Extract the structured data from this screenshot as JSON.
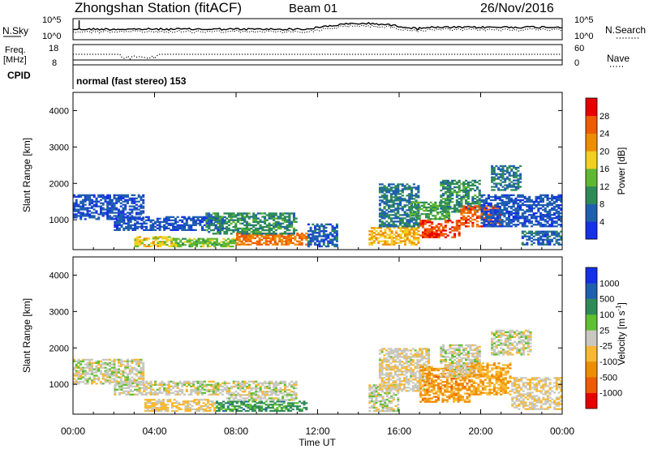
{
  "header": {
    "station": "Zhongshan Station (fitACF)",
    "beam": "Beam 01",
    "date": "26/Nov/2016"
  },
  "noise_panel": {
    "left_label": "N.Sky",
    "right_label": "N.Search",
    "left_ticks": [
      "10^5",
      "10^0"
    ],
    "right_ticks": [
      "10^5",
      "10^0"
    ]
  },
  "freq_panel": {
    "label_line1": "Freq.",
    "label_line2": "[MHz]",
    "left_ticks": [
      "18",
      "8"
    ],
    "right_ticks": [
      "60",
      "0"
    ],
    "right_label": "Nave"
  },
  "cpid": {
    "label": "CPID",
    "text": "normal (fast stereo) 153"
  },
  "power_panel": {
    "ylabel": "Slant Range [km]",
    "yticks": [
      "1000",
      "2000",
      "3000",
      "4000"
    ],
    "colorbar_title": "Power [dB]",
    "colorbar_ticks": [
      "4",
      "8",
      "12",
      "16",
      "20",
      "24",
      "28"
    ],
    "colors": [
      "#1430e8",
      "#1f5fb0",
      "#2e8b57",
      "#5fb830",
      "#f0d020",
      "#f08c00",
      "#f05a00",
      "#e80000"
    ]
  },
  "velocity_panel": {
    "ylabel": "Slant Range [km]",
    "yticks": [
      "1000",
      "2000",
      "3000",
      "4000"
    ],
    "colorbar_title": "Velocity [m s",
    "colorbar_title_sup": "-1",
    "colorbar_title_end": "]",
    "colorbar_ticks": [
      "-1000",
      "-500",
      "-100",
      "-25",
      "25",
      "100",
      "500",
      "1000"
    ],
    "colors": [
      "#e80000",
      "#f05a00",
      "#f08c00",
      "#f8b830",
      "#c8c8c0",
      "#5fc030",
      "#2e8b57",
      "#1f5fb0",
      "#1430e8"
    ]
  },
  "x_axis": {
    "ticks": [
      "00:00",
      "04:00",
      "08:00",
      "12:00",
      "16:00",
      "20:00",
      "00:00"
    ],
    "label": "Time UT"
  },
  "chart_data": {
    "type": "heatmap",
    "title": "Zhongshan Station (fitACF)   Beam 01   26/Nov/2016",
    "xlabel": "Time UT",
    "ylabel": "Slant Range [km]",
    "xlim_hours": [
      0,
      24
    ],
    "ylim_km": [
      180,
      4500
    ],
    "panels": [
      {
        "name": "Power",
        "units": "dB",
        "color_range": [
          0,
          32
        ],
        "regions": [
          {
            "t0": 0.0,
            "t1": 3.5,
            "r0": 1000,
            "r1": 1700,
            "v": 5
          },
          {
            "t0": 2.0,
            "t1": 7.5,
            "r0": 700,
            "r1": 1100,
            "v": 5
          },
          {
            "t0": 3.0,
            "t1": 5.0,
            "r0": 250,
            "r1": 550,
            "v": 18
          },
          {
            "t0": 5.0,
            "t1": 8.0,
            "r0": 250,
            "r1": 500,
            "v": 14
          },
          {
            "t0": 8.0,
            "t1": 11.5,
            "r0": 300,
            "r1": 650,
            "v": 24
          },
          {
            "t0": 6.5,
            "t1": 11.0,
            "r0": 600,
            "r1": 1200,
            "v": 10
          },
          {
            "t0": 11.5,
            "t1": 13.0,
            "r0": 250,
            "r1": 900,
            "v": 6
          },
          {
            "t0": 14.5,
            "t1": 17.0,
            "r0": 300,
            "r1": 800,
            "v": 20
          },
          {
            "t0": 15.0,
            "t1": 17.0,
            "r0": 800,
            "r1": 2000,
            "v": 8
          },
          {
            "t0": 16.5,
            "t1": 18.5,
            "r0": 1000,
            "r1": 1500,
            "v": 12
          },
          {
            "t0": 17.0,
            "t1": 19.0,
            "r0": 500,
            "r1": 1000,
            "v": 27
          },
          {
            "t0": 18.0,
            "t1": 20.0,
            "r0": 1200,
            "r1": 2100,
            "v": 10
          },
          {
            "t0": 19.0,
            "t1": 21.0,
            "r0": 800,
            "r1": 1400,
            "v": 26
          },
          {
            "t0": 20.0,
            "t1": 24.0,
            "r0": 800,
            "r1": 1700,
            "v": 5
          },
          {
            "t0": 20.5,
            "t1": 22.0,
            "r0": 1800,
            "r1": 2500,
            "v": 8
          },
          {
            "t0": 22.0,
            "t1": 24.0,
            "r0": 300,
            "r1": 700,
            "v": 6
          }
        ]
      },
      {
        "name": "Velocity",
        "units": "m s-1",
        "color_range": [
          -1000,
          1000
        ],
        "regions": [
          {
            "t0": 0.0,
            "t1": 3.5,
            "r0": 1000,
            "r1": 1700,
            "v": 0
          },
          {
            "t0": 2.0,
            "t1": 7.5,
            "r0": 700,
            "r1": 1100,
            "v": 0
          },
          {
            "t0": 3.5,
            "t1": 7.0,
            "r0": 250,
            "r1": 600,
            "v": -150
          },
          {
            "t0": 7.0,
            "t1": 11.5,
            "r0": 250,
            "r1": 550,
            "v": 400
          },
          {
            "t0": 7.5,
            "t1": 11.0,
            "r0": 550,
            "r1": 1100,
            "v": 0
          },
          {
            "t0": 14.5,
            "t1": 16.0,
            "r0": 250,
            "r1": 1000,
            "v": 0
          },
          {
            "t0": 15.0,
            "t1": 17.5,
            "r0": 800,
            "r1": 2000,
            "v": -60
          },
          {
            "t0": 17.0,
            "t1": 19.5,
            "r0": 500,
            "r1": 1500,
            "v": -400
          },
          {
            "t0": 18.0,
            "t1": 20.0,
            "r0": 1200,
            "r1": 2100,
            "v": 0
          },
          {
            "t0": 19.5,
            "t1": 21.5,
            "r0": 700,
            "r1": 1600,
            "v": -300
          },
          {
            "t0": 20.5,
            "t1": 22.5,
            "r0": 1800,
            "r1": 2500,
            "v": 0
          },
          {
            "t0": 21.5,
            "t1": 24.0,
            "r0": 300,
            "r1": 1200,
            "v": -80
          }
        ]
      }
    ]
  }
}
